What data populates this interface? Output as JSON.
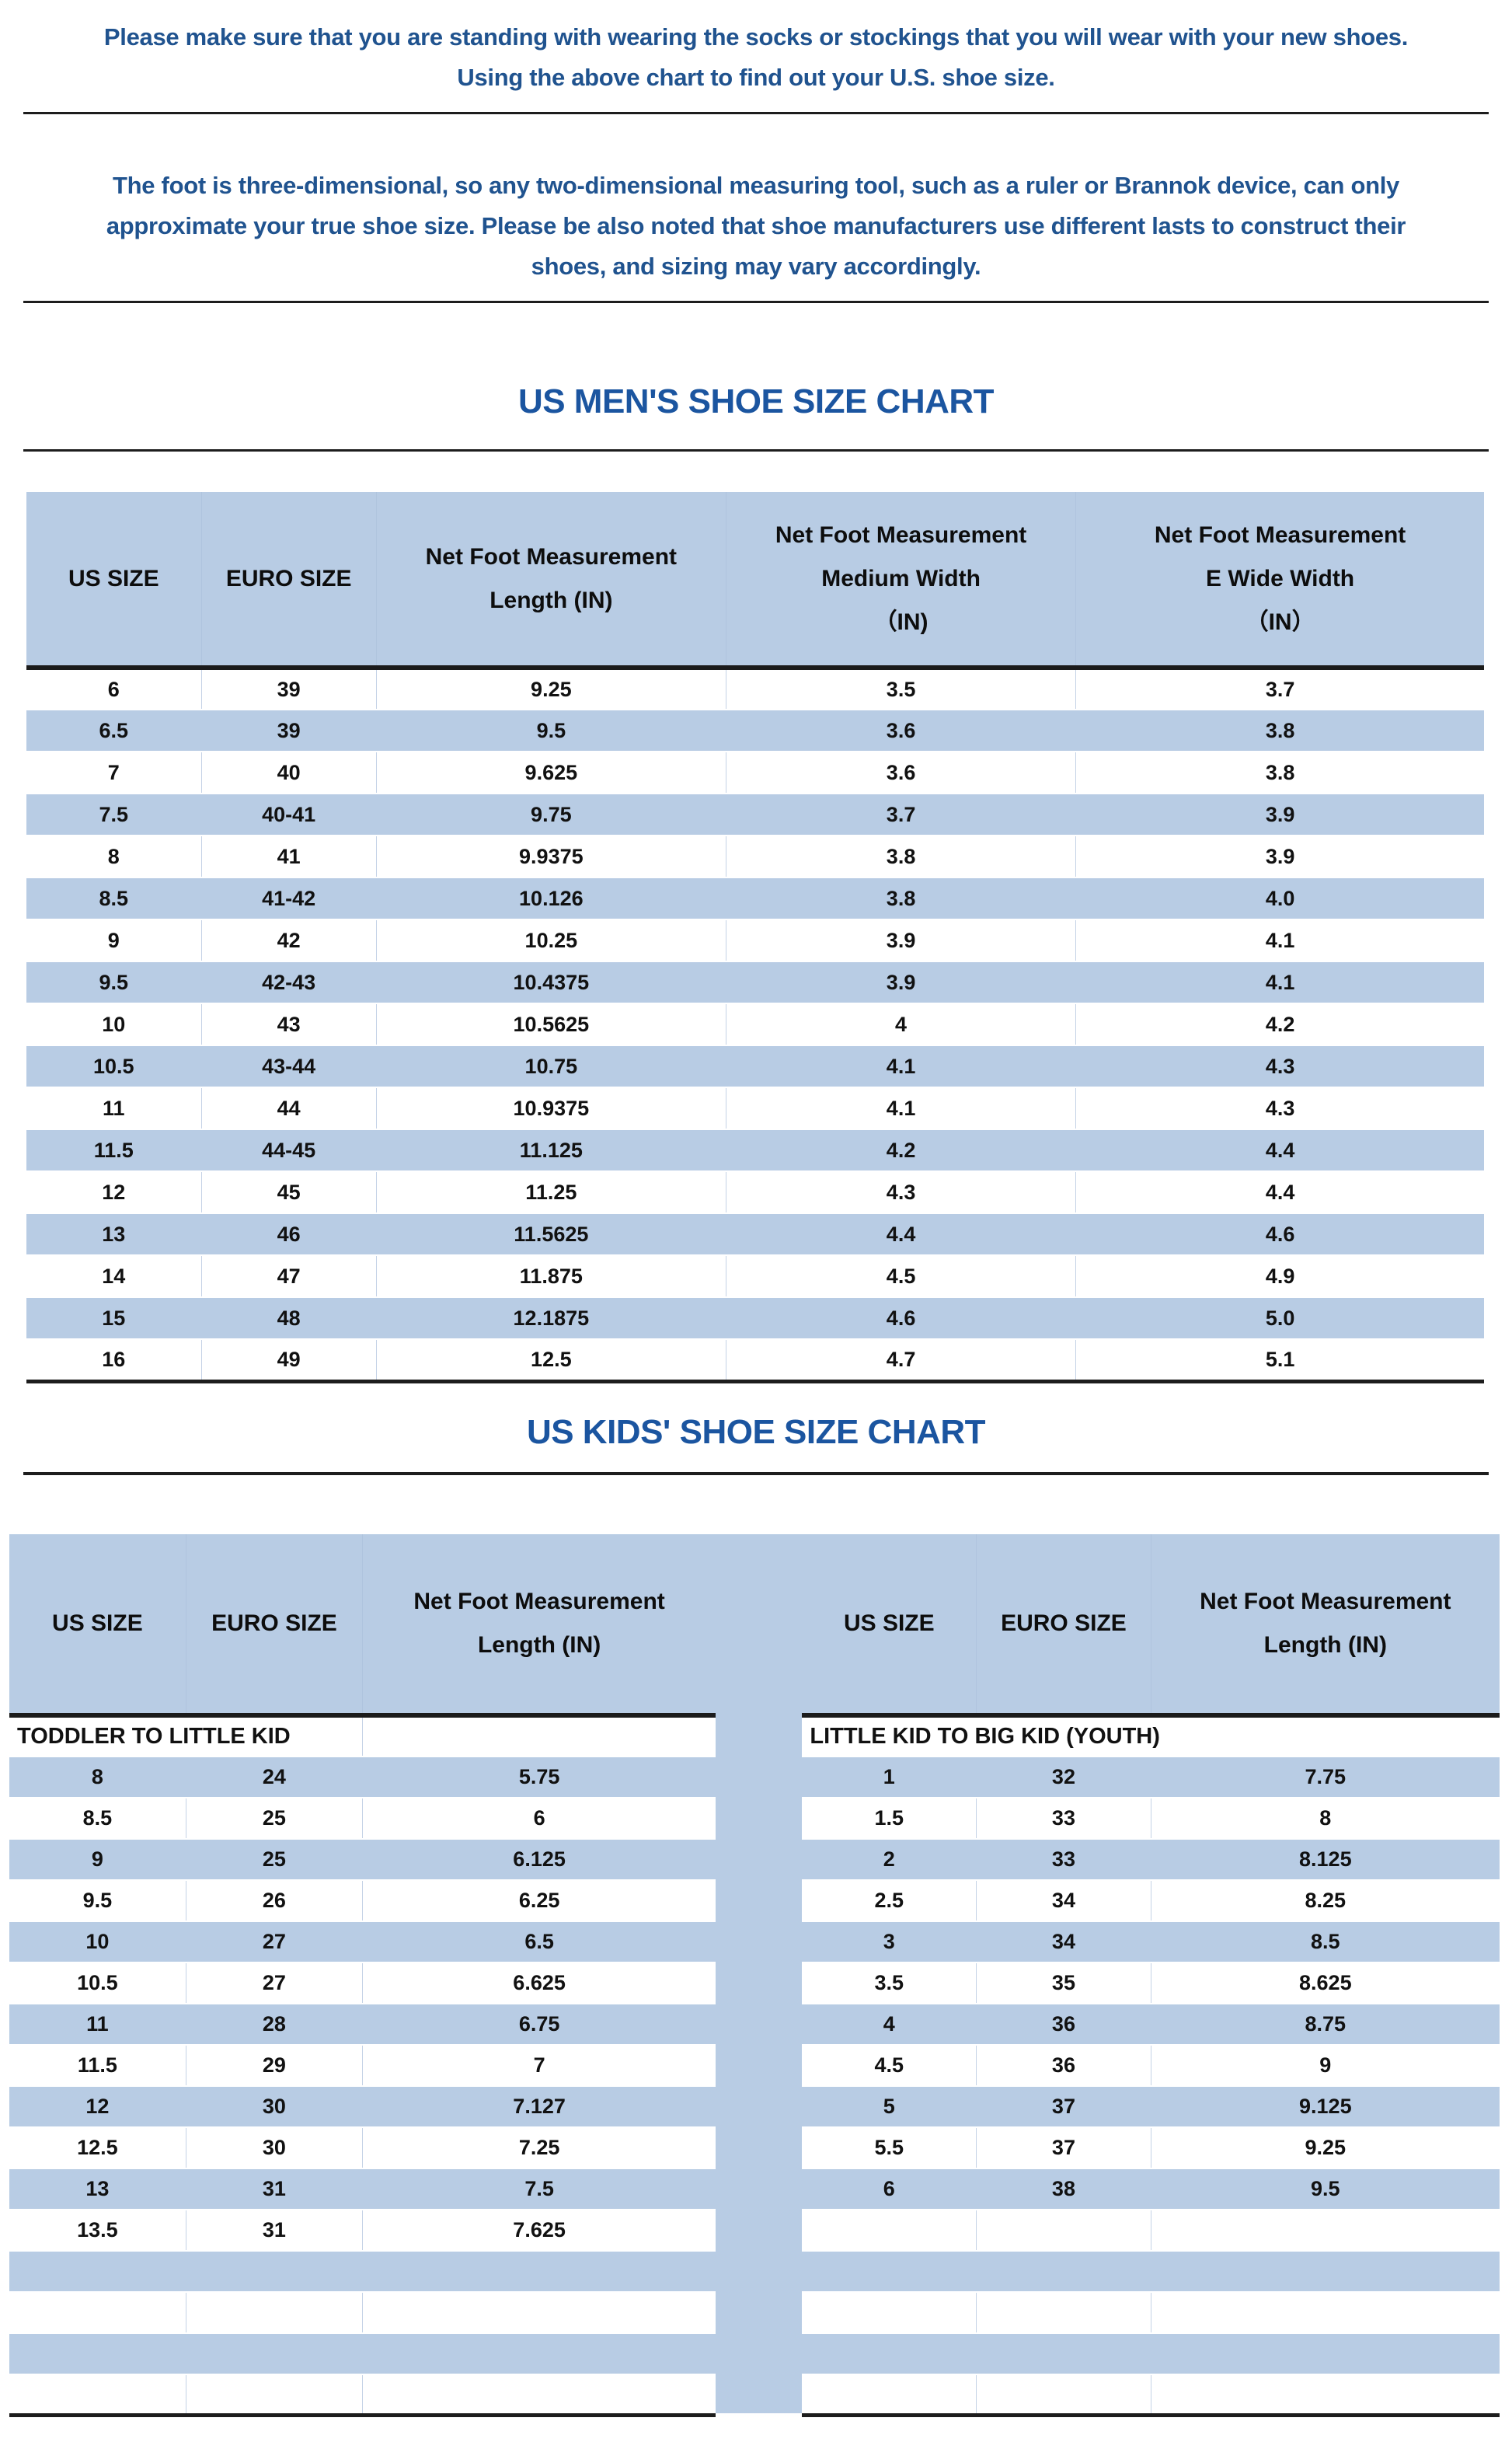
{
  "colors": {
    "stripe_blue": "#b8cce4",
    "divider_dark": "#1d1d1d",
    "intro_text_blue": "#20538f",
    "title_blue": "#1b55a0",
    "cell_border_light": "#c4d2e6"
  },
  "intro": {
    "paragraph1": "Please make sure that you are standing with wearing the socks or stockings that you will wear with your new shoes.\nUsing the above chart to find out your U.S. shoe size.",
    "paragraph2": "The foot is three-dimensional, so any two-dimensional measuring tool, such as a ruler or Brannok device, can only\napproximate your true shoe size. Please be also noted that shoe manufacturers use different lasts to construct their\nshoes, and sizing may vary accordingly."
  },
  "mens_chart": {
    "title": "US MEN'S SHOE SIZE CHART",
    "columns": [
      "US SIZE",
      "EURO SIZE",
      "Net Foot Measurement\nLength (IN)",
      "Net Foot Measurement\nMedium Width\n（IN)",
      "Net Foot Measurement\nE Wide Width\n（IN）"
    ],
    "first_row_shade": "white",
    "rows": [
      [
        "6",
        "39",
        "9.25",
        "3.5",
        "3.7"
      ],
      [
        "6.5",
        "39",
        "9.5",
        "3.6",
        "3.8"
      ],
      [
        "7",
        "40",
        "9.625",
        "3.6",
        "3.8"
      ],
      [
        "7.5",
        "40-41",
        "9.75",
        "3.7",
        "3.9"
      ],
      [
        "8",
        "41",
        "9.9375",
        "3.8",
        "3.9"
      ],
      [
        "8.5",
        "41-42",
        "10.126",
        "3.8",
        "4.0"
      ],
      [
        "9",
        "42",
        "10.25",
        "3.9",
        "4.1"
      ],
      [
        "9.5",
        "42-43",
        "10.4375",
        "3.9",
        "4.1"
      ],
      [
        "10",
        "43",
        "10.5625",
        "4",
        "4.2"
      ],
      [
        "10.5",
        "43-44",
        "10.75",
        "4.1",
        "4.3"
      ],
      [
        "11",
        "44",
        "10.9375",
        "4.1",
        "4.3"
      ],
      [
        "11.5",
        "44-45",
        "11.125",
        "4.2",
        "4.4"
      ],
      [
        "12",
        "45",
        "11.25",
        "4.3",
        "4.4"
      ],
      [
        "13",
        "46",
        "11.5625",
        "4.4",
        "4.6"
      ],
      [
        "14",
        "47",
        "11.875",
        "4.5",
        "4.9"
      ],
      [
        "15",
        "48",
        "12.1875",
        "4.6",
        "5.0"
      ],
      [
        "16",
        "49",
        "12.5",
        "4.7",
        "5.1"
      ]
    ]
  },
  "kids_chart": {
    "title": "US KIDS' SHOE SIZE CHART",
    "left": {
      "section_label": "TODDLER TO LITTLE KID",
      "columns": [
        "US SIZE",
        "EURO SIZE",
        "Net Foot Measurement\nLength (IN)"
      ],
      "first_row_shade": "blue",
      "rows": [
        [
          "8",
          "24",
          "5.75"
        ],
        [
          "8.5",
          "25",
          "6"
        ],
        [
          "9",
          "25",
          "6.125"
        ],
        [
          "9.5",
          "26",
          "6.25"
        ],
        [
          "10",
          "27",
          "6.5"
        ],
        [
          "10.5",
          "27",
          "6.625"
        ],
        [
          "11",
          "28",
          "6.75"
        ],
        [
          "11.5",
          "29",
          "7"
        ],
        [
          "12",
          "30",
          "7.127"
        ],
        [
          "12.5",
          "30",
          "7.25"
        ],
        [
          "13",
          "31",
          "7.5"
        ],
        [
          "13.5",
          "31",
          "7.625"
        ],
        [
          "",
          "",
          ""
        ],
        [
          "",
          "",
          ""
        ],
        [
          "",
          "",
          ""
        ],
        [
          "",
          "",
          ""
        ]
      ]
    },
    "right": {
      "section_label": "LITTLE KID TO BIG KID (YOUTH)",
      "columns": [
        "US SIZE",
        "EURO SIZE",
        "Net Foot Measurement\nLength (IN)"
      ],
      "first_row_shade": "blue",
      "rows": [
        [
          "1",
          "32",
          "7.75"
        ],
        [
          "1.5",
          "33",
          "8"
        ],
        [
          "2",
          "33",
          "8.125"
        ],
        [
          "2.5",
          "34",
          "8.25"
        ],
        [
          "3",
          "34",
          "8.5"
        ],
        [
          "3.5",
          "35",
          "8.625"
        ],
        [
          "4",
          "36",
          "8.75"
        ],
        [
          "4.5",
          "36",
          "9"
        ],
        [
          "5",
          "37",
          "9.125"
        ],
        [
          "5.5",
          "37",
          "9.25"
        ],
        [
          "6",
          "38",
          "9.5"
        ],
        [
          "",
          "",
          ""
        ],
        [
          "",
          "",
          ""
        ],
        [
          "",
          "",
          ""
        ],
        [
          "",
          "",
          ""
        ],
        [
          "",
          "",
          ""
        ]
      ]
    }
  }
}
